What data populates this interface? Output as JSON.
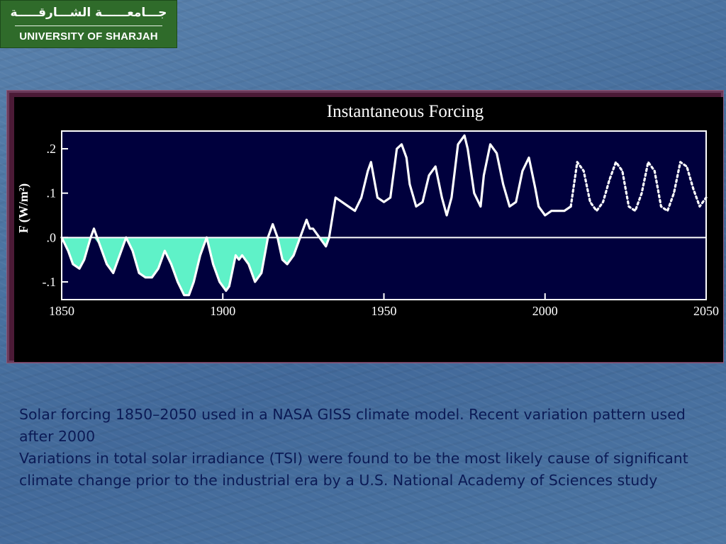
{
  "logo": {
    "arabic": "جـــامعــــــة الشـــارقـــــة",
    "english": "UNIVERSITY OF SHARJAH"
  },
  "caption": {
    "line1": "Solar forcing 1850–2050 used in a NASA GISS climate model. Recent variation pattern used after 2000",
    "line2": "Variations in total solar irradiance (TSI) were found to be the most likely cause of significant climate change prior to the industrial era by a U.S. National Academy of Sciences study"
  },
  "colors": {
    "plot_bg": "#00003d",
    "line": "#ffffff",
    "negative_fill": "#5ff2c8"
  },
  "chart_data": {
    "type": "line",
    "title": "Instantaneous Forcing",
    "ylabel": "F (W/m²)",
    "xlabel": "",
    "xlim": [
      1850,
      2050
    ],
    "ylim": [
      -0.14,
      0.24
    ],
    "xticks": [
      1850,
      1900,
      1950,
      2000,
      2050
    ],
    "xtick_labels": [
      "1850",
      "1900",
      "1950",
      "2000",
      "2050"
    ],
    "yticks": [
      0.2,
      0.1,
      0.0,
      -0.1
    ],
    "ytick_labels": [
      ".2",
      ".1",
      ".0",
      "-.1"
    ],
    "zero_line": true,
    "fill_below_zero": true,
    "series": [
      {
        "style": "solid",
        "x": [
          1850,
          1852,
          1853.5,
          1855.5,
          1857,
          1859,
          1860,
          1862,
          1864,
          1866,
          1868,
          1870,
          1872,
          1874,
          1876,
          1878,
          1880,
          1882,
          1884,
          1886,
          1888,
          1889.5,
          1891,
          1893,
          1895,
          1897,
          1899,
          1901,
          1902,
          1904,
          1905,
          1906,
          1908,
          1910,
          1912,
          1914,
          1915.5,
          1917,
          1918.5,
          1920,
          1922,
          1924,
          1926,
          1927,
          1928,
          1930,
          1932,
          1933,
          1935,
          1937,
          1939,
          1941,
          1943,
          1945,
          1946,
          1948,
          1950,
          1952,
          1954,
          1955.5,
          1957,
          1958,
          1960,
          1962,
          1964,
          1966,
          1968,
          1969.5,
          1971,
          1973,
          1975,
          1976,
          1978,
          1980,
          1981,
          1983,
          1985,
          1987,
          1989,
          1991,
          1993,
          1995,
          1997,
          1998,
          2000,
          2002,
          2004,
          2006,
          2008
        ],
        "y": [
          0.0,
          -0.03,
          -0.06,
          -0.07,
          -0.05,
          0.0,
          0.02,
          -0.02,
          -0.06,
          -0.08,
          -0.04,
          0.0,
          -0.03,
          -0.08,
          -0.09,
          -0.09,
          -0.07,
          -0.03,
          -0.06,
          -0.1,
          -0.13,
          -0.13,
          -0.1,
          -0.04,
          0.0,
          -0.06,
          -0.1,
          -0.12,
          -0.11,
          -0.04,
          -0.05,
          -0.04,
          -0.06,
          -0.1,
          -0.08,
          0.0,
          0.03,
          0.0,
          -0.05,
          -0.06,
          -0.04,
          0.0,
          0.04,
          0.02,
          0.02,
          0.0,
          -0.02,
          0.0,
          0.09,
          0.08,
          0.07,
          0.06,
          0.09,
          0.15,
          0.17,
          0.09,
          0.08,
          0.09,
          0.2,
          0.21,
          0.18,
          0.12,
          0.07,
          0.08,
          0.14,
          0.16,
          0.09,
          0.05,
          0.09,
          0.21,
          0.23,
          0.2,
          0.1,
          0.07,
          0.14,
          0.21,
          0.19,
          0.12,
          0.07,
          0.08,
          0.15,
          0.18,
          0.11,
          0.07,
          0.05,
          0.06,
          0.06,
          0.06,
          0.07
        ]
      },
      {
        "style": "dotted",
        "x": [
          2008,
          2010,
          2012,
          2014,
          2016,
          2018,
          2020,
          2022,
          2024,
          2026,
          2028,
          2030,
          2032,
          2034,
          2036,
          2038,
          2040,
          2042,
          2044,
          2046,
          2048,
          2050
        ],
        "y": [
          0.07,
          0.17,
          0.15,
          0.08,
          0.06,
          0.08,
          0.13,
          0.17,
          0.15,
          0.07,
          0.06,
          0.1,
          0.17,
          0.15,
          0.07,
          0.06,
          0.1,
          0.17,
          0.16,
          0.11,
          0.07,
          0.09
        ]
      }
    ]
  }
}
